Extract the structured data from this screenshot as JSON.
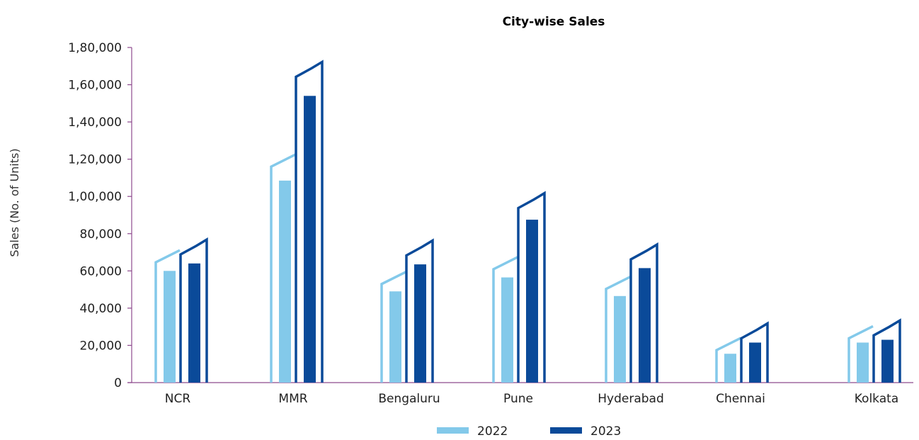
{
  "chart_data": {
    "type": "bar",
    "title": "City-wise Sales",
    "ylabel": "Sales (No. of Units)",
    "xlabel": "",
    "categories": [
      "NCR",
      "MMR",
      "Bengaluru",
      "Pune",
      "Hyderabad",
      "Chennai",
      "Kolkata"
    ],
    "series": [
      {
        "name": "2022",
        "values": [
          60000,
          108500,
          49000,
          56500,
          46500,
          15500,
          21500
        ],
        "color": "#83C9EA"
      },
      {
        "name": "2023",
        "values": [
          64000,
          154000,
          63500,
          87500,
          61500,
          21500,
          23000
        ],
        "color": "#0A4A99"
      }
    ],
    "ylim": [
      0,
      180000
    ],
    "yticks": [
      0,
      20000,
      40000,
      60000,
      80000,
      100000,
      120000,
      140000,
      160000,
      180000
    ],
    "ytick_labels": [
      "0",
      "20,000",
      "40,000",
      "60,000",
      "80,000",
      "1,00,000",
      "1,20,000",
      "1,40,000",
      "1,60,000",
      "1,80,000"
    ],
    "axis_color": "#8E4A8E",
    "grid": false,
    "legend_position": "bottom"
  }
}
